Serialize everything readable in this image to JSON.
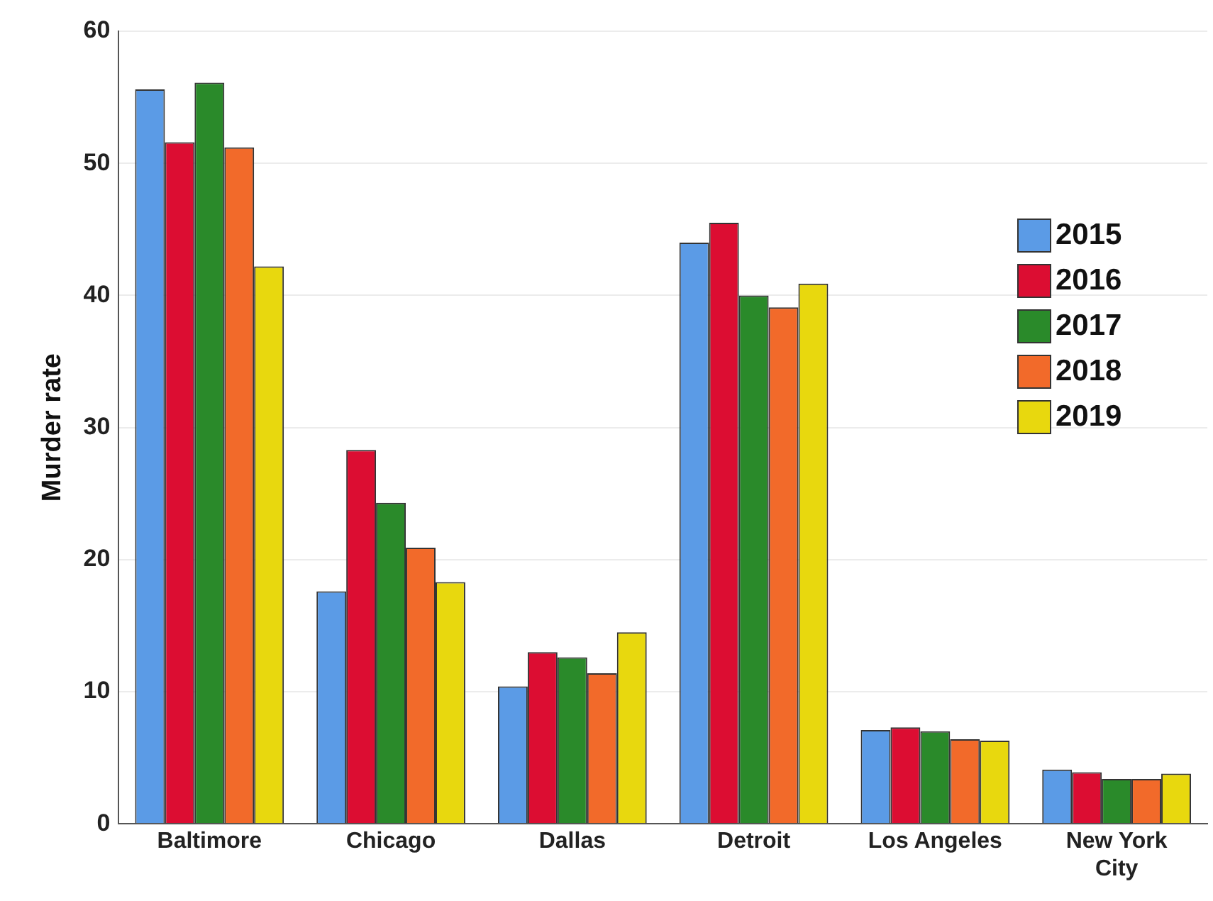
{
  "chart_data": {
    "type": "bar",
    "ylabel": "Murder rate",
    "categories": [
      "Baltimore",
      "Chicago",
      "Dallas",
      "Detroit",
      "Los Angeles",
      "New York City"
    ],
    "series": [
      {
        "name": "2015",
        "color": "#5b9be6",
        "values": [
          55.6,
          17.6,
          10.4,
          44.0,
          7.1,
          4.1
        ]
      },
      {
        "name": "2016",
        "color": "#dc0d32",
        "values": [
          51.6,
          28.3,
          13.0,
          45.5,
          7.3,
          3.9
        ]
      },
      {
        "name": "2017",
        "color": "#2a8a2a",
        "values": [
          56.1,
          24.3,
          12.6,
          40.0,
          7.0,
          3.4
        ]
      },
      {
        "name": "2018",
        "color": "#f26a2a",
        "values": [
          51.2,
          20.9,
          11.4,
          39.1,
          6.4,
          3.4
        ]
      },
      {
        "name": "2019",
        "color": "#e8d80e",
        "values": [
          42.2,
          18.3,
          14.5,
          40.9,
          6.3,
          3.8
        ]
      }
    ],
    "ylim": [
      0,
      60
    ],
    "yticks": [
      0,
      10,
      20,
      30,
      40,
      50,
      60
    ],
    "grid": "y",
    "legend": "right"
  }
}
